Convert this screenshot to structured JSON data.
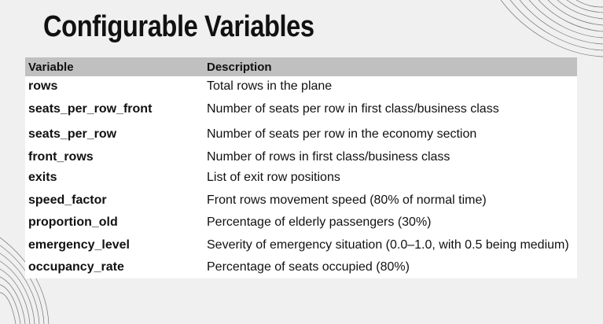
{
  "slide": {
    "title": "Configurable Variables"
  },
  "table": {
    "headers": {
      "variable": "Variable",
      "description": "Description"
    },
    "rows": [
      {
        "variable": "rows",
        "description": "Total rows in the plane"
      },
      {
        "variable": "seats_per_row_front",
        "description": "Number of seats per row in first class/business class"
      },
      {
        "variable": "seats_per_row",
        "description": "Number of seats per row in the economy section"
      },
      {
        "variable": "front_rows",
        "description": "Number of rows in first class/business class"
      },
      {
        "variable": "exits",
        "description": "List of exit row positions"
      },
      {
        "variable": "speed_factor",
        "description": "Front rows movement speed (80% of normal time)"
      },
      {
        "variable": "proportion_old",
        "description": "Percentage of elderly passengers (30%)"
      },
      {
        "variable": "emergency_level",
        "description": "Severity of emergency situation (0.0–1.0, with 0.5 being medium)"
      },
      {
        "variable": "occupancy_rate",
        "description": "Percentage of seats occupied (80%)"
      }
    ]
  },
  "colors": {
    "background": "#f0f0f0",
    "header_fill": "#c0c0c0",
    "table_fill": "#ffffff",
    "text": "#111111"
  }
}
